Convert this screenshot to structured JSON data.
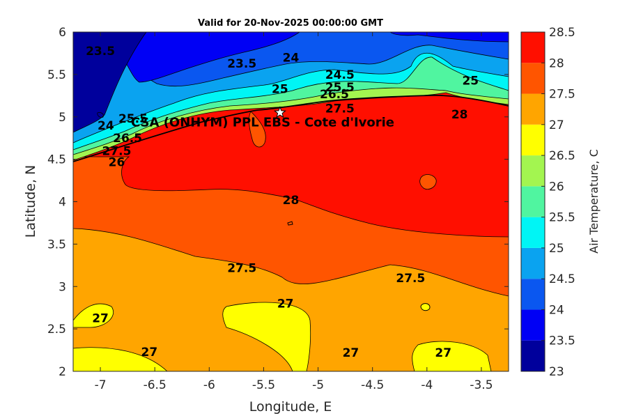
{
  "chart_data": {
    "type": "filled-contour",
    "title": "Valid for 20-Nov-2025 00:00:00 GMT",
    "xlabel": "Longitude, E",
    "ylabel": "Latitude, N",
    "xlim": [
      -7.25,
      -3.25
    ],
    "ylim": [
      2,
      6
    ],
    "xticks": [
      -7,
      -6.5,
      -6,
      -5.5,
      -5,
      -4.5,
      -4,
      -3.5
    ],
    "yticks": [
      2,
      2.5,
      3,
      3.5,
      4,
      4.5,
      5,
      5.5,
      6
    ],
    "colorbar": {
      "label": "Air Temperature, C",
      "levels": [
        23,
        23.5,
        24,
        24.5,
        25,
        25.5,
        26,
        26.5,
        27,
        27.5,
        28,
        28.5
      ],
      "colors": [
        "#00009c",
        "#0000f5",
        "#0a57f0",
        "#0aa3f0",
        "#00f5f5",
        "#50f5a0",
        "#a3f550",
        "#ffff00",
        "#ffa500",
        "#ff5500",
        "#ff0f00",
        "#a80000"
      ]
    },
    "site": {
      "label": "CSA (ONHYM) PPL EBS  - Cote d'Ivorie",
      "lon": -5.35,
      "lat": 5.05
    },
    "contour_labels": [
      {
        "text": "23.5",
        "lon": -7.0,
        "lat": 5.78
      },
      {
        "text": "23.5",
        "lon": -5.7,
        "lat": 5.63
      },
      {
        "text": "24",
        "lon": -5.25,
        "lat": 5.7
      },
      {
        "text": "24.5",
        "lon": -4.8,
        "lat": 5.5
      },
      {
        "text": "25",
        "lon": -5.35,
        "lat": 5.33
      },
      {
        "text": "25",
        "lon": -3.6,
        "lat": 5.43
      },
      {
        "text": "25.5",
        "lon": -4.8,
        "lat": 5.35
      },
      {
        "text": "26.5",
        "lon": -4.85,
        "lat": 5.27
      },
      {
        "text": "27.5",
        "lon": -4.8,
        "lat": 5.1
      },
      {
        "text": "28",
        "lon": -3.7,
        "lat": 5.03
      },
      {
        "text": "24",
        "lon": -6.95,
        "lat": 4.9
      },
      {
        "text": "25.5",
        "lon": -6.7,
        "lat": 4.98
      },
      {
        "text": "26.5",
        "lon": -6.75,
        "lat": 4.75
      },
      {
        "text": "27.5",
        "lon": -6.85,
        "lat": 4.6
      },
      {
        "text": "26",
        "lon": -6.85,
        "lat": 4.47
      },
      {
        "text": "28",
        "lon": -5.25,
        "lat": 4.02
      },
      {
        "text": "27.5",
        "lon": -5.7,
        "lat": 3.22
      },
      {
        "text": "27.5",
        "lon": -4.15,
        "lat": 3.1
      },
      {
        "text": "27",
        "lon": -7.0,
        "lat": 2.63
      },
      {
        "text": "27",
        "lon": -5.3,
        "lat": 2.8
      },
      {
        "text": "27",
        "lon": -6.55,
        "lat": 2.23
      },
      {
        "text": "27",
        "lon": -4.7,
        "lat": 2.22
      },
      {
        "text": "27",
        "lon": -3.85,
        "lat": 2.22
      }
    ]
  }
}
